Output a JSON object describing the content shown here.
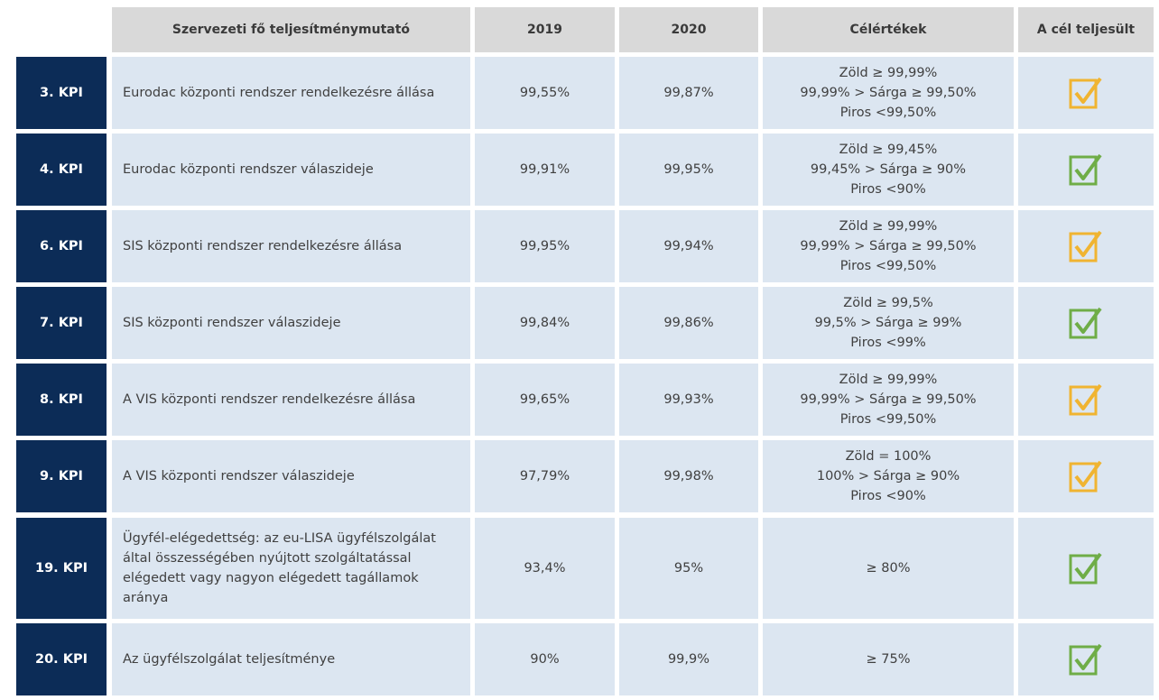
{
  "table": {
    "header": [
      "Szervezeti fő teljesítménymutató",
      "2019",
      "2020",
      "Célértékek",
      "A cél teljesült"
    ],
    "rows": [
      {
        "kpi": "3. KPI",
        "name": "Eurodac központi rendszer rendelkezésre állása",
        "v2019": "99,55%",
        "v2020": "99,87%",
        "target": [
          "Zöld ≥ 99,99%",
          "99,99% > Sárga ≥ 99,50%",
          "Piros <99,50%"
        ],
        "check_color": "#f0b431"
      },
      {
        "kpi": "4. KPI",
        "name": "Eurodac központi rendszer válaszideje",
        "v2019": "99,91%",
        "v2020": "99,95%",
        "target": [
          "Zöld ≥ 99,45%",
          "99,45% > Sárga ≥ 90%",
          "Piros <90%"
        ],
        "check_color": "#6fad47"
      },
      {
        "kpi": "6. KPI",
        "name": "SIS központi rendszer rendelkezésre állása",
        "v2019": "99,95%",
        "v2020": "99,94%",
        "target": [
          "Zöld ≥ 99,99%",
          "99,99% > Sárga ≥ 99,50%",
          "Piros <99,50%"
        ],
        "check_color": "#f0b431"
      },
      {
        "kpi": "7. KPI",
        "name": "SIS központi rendszer válaszideje",
        "v2019": "99,84%",
        "v2020": "99,86%",
        "target": [
          "Zöld ≥ 99,5%",
          "99,5% > Sárga ≥ 99%",
          "Piros <99%"
        ],
        "check_color": "#6fad47"
      },
      {
        "kpi": "8. KPI",
        "name": "A VIS központi rendszer rendelkezésre állása",
        "v2019": "99,65%",
        "v2020": "99,93%",
        "target": [
          "Zöld ≥ 99,99%",
          "99,99% > Sárga ≥ 99,50%",
          "Piros <99,50%"
        ],
        "check_color": "#f0b431"
      },
      {
        "kpi": "9. KPI",
        "name": "A VIS központi rendszer válaszideje",
        "v2019": "97,79%",
        "v2020": "99,98%",
        "target": [
          "Zöld = 100%",
          "100% > Sárga ≥ 90%",
          "Piros <90%"
        ],
        "check_color": "#f0b431"
      },
      {
        "kpi": "19. KPI",
        "name": "Ügyfél-elégedettség: az eu-LISA ügyfélszolgálat által összességében nyújtott szolgáltatással elégedett vagy nagyon elégedett tagállamok aránya",
        "v2019": "93,4%",
        "v2020": "95%",
        "target": [
          "≥ 80%"
        ],
        "check_color": "#6fad47"
      },
      {
        "kpi": "20. KPI",
        "name": "Az ügyfélszolgálat teljesítménye",
        "v2019": "90%",
        "v2020": "99,9%",
        "target": [
          "≥ 75%"
        ],
        "check_color": "#6fad47"
      }
    ]
  }
}
